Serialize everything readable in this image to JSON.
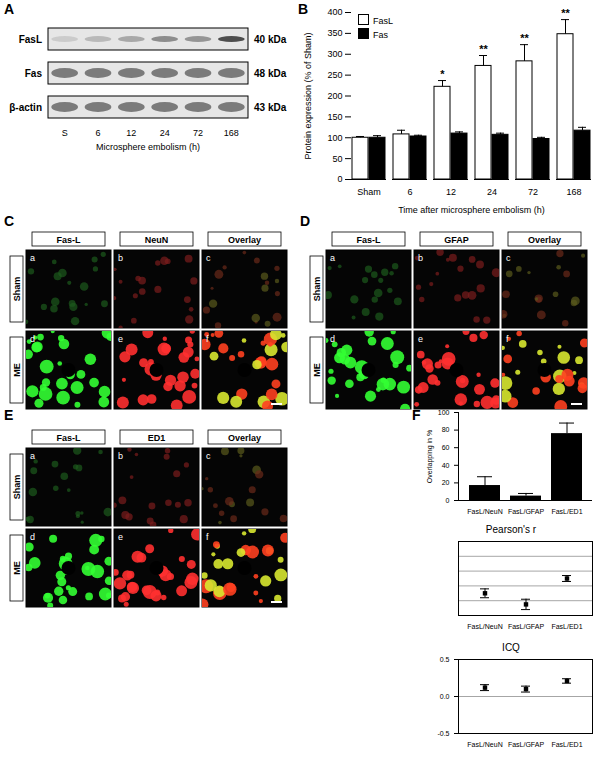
{
  "panel_labels": [
    "A",
    "B",
    "C",
    "D",
    "E",
    "F"
  ],
  "blot": {
    "rows": [
      {
        "name": "FasL",
        "size": "40 kDa"
      },
      {
        "name": "Fas",
        "size": "48 kDa"
      },
      {
        "name": "β-actin",
        "size": "43 kDa"
      }
    ],
    "lanes": [
      "S",
      "6",
      "12",
      "24",
      "72",
      "168"
    ],
    "lane_title": "Microsphere embolism (h)"
  },
  "micrographs": [
    {
      "panel": "C",
      "channels": [
        "Fas-L",
        "NeuN",
        "Overlay"
      ],
      "rows": [
        "Sham",
        "ME"
      ],
      "sub_labels": [
        "a",
        "b",
        "c",
        "d",
        "e",
        "f"
      ]
    },
    {
      "panel": "D",
      "channels": [
        "Fas-L",
        "GFAP",
        "Overlay"
      ],
      "rows": [
        "Sham",
        "ME"
      ],
      "sub_labels": [
        "a",
        "b",
        "c",
        "d",
        "e",
        "f"
      ]
    },
    {
      "panel": "E",
      "channels": [
        "Fas-L",
        "ED1",
        "Overlay"
      ],
      "rows": [
        "Sham",
        "ME"
      ],
      "sub_labels": [
        "a",
        "b",
        "c",
        "d",
        "e",
        "f"
      ]
    }
  ],
  "chart_data": [
    {
      "type": "bar",
      "y_label": "Protein expression (% of Sham)",
      "x_label": "Time after microsphere embolism (h)",
      "categories": [
        "Sham",
        "6",
        "12",
        "24",
        "72",
        "168"
      ],
      "series": [
        {
          "name": "FasL",
          "color": "#ffffff",
          "values": [
            100,
            108,
            222,
            272,
            283,
            348
          ],
          "errors": [
            3,
            10,
            15,
            25,
            40,
            35
          ],
          "annotations": [
            null,
            null,
            "*",
            "**",
            "**",
            "**"
          ]
        },
        {
          "name": "Fas",
          "color": "#000000",
          "values": [
            100,
            103,
            110,
            107,
            97,
            117
          ],
          "errors": [
            5,
            3,
            4,
            4,
            4,
            8
          ]
        }
      ],
      "ylim": [
        0,
        400
      ],
      "yticks": [
        0,
        50,
        100,
        150,
        200,
        250,
        300,
        350,
        400
      ],
      "legend": "top-left"
    },
    {
      "type": "bar",
      "y_label": "Overlapping in %",
      "categories": [
        "FasL/NeuN",
        "FasL/GFAP",
        "FasL/ED1"
      ],
      "values": [
        17,
        5,
        76
      ],
      "errors": [
        10,
        3,
        12
      ],
      "color": "#000000",
      "ylim": [
        0,
        100
      ],
      "yticks": [
        0,
        20,
        40,
        60,
        80,
        100
      ]
    },
    {
      "type": "scatter",
      "title": "Pearson's r",
      "categories": [
        "FasL/NeuN",
        "FasL/GFAP",
        "FasL/ED1"
      ],
      "values": [
        0.3,
        0.15,
        0.5
      ],
      "errors": [
        0.06,
        0.07,
        0.04
      ],
      "ylim": [
        0,
        1
      ],
      "yticks": [
        0,
        0.2,
        0.4,
        0.6,
        0.8,
        1
      ],
      "grid": true,
      "tick_labels": "x",
      "marker": "square",
      "color": "#000000"
    },
    {
      "type": "scatter",
      "title": "ICQ",
      "categories": [
        "FasL/NeuN",
        "FasL/GFAP",
        "FasL/ED1"
      ],
      "values": [
        0.12,
        0.1,
        0.21
      ],
      "errors": [
        0.04,
        0.04,
        0.03
      ],
      "ylim": [
        -0.5,
        0.5
      ],
      "yticks": [
        -0.5,
        {
          "value": 0,
          "label": "0.0"
        },
        0.5
      ],
      "grid": true,
      "marker": "square",
      "color": "#000000"
    }
  ]
}
